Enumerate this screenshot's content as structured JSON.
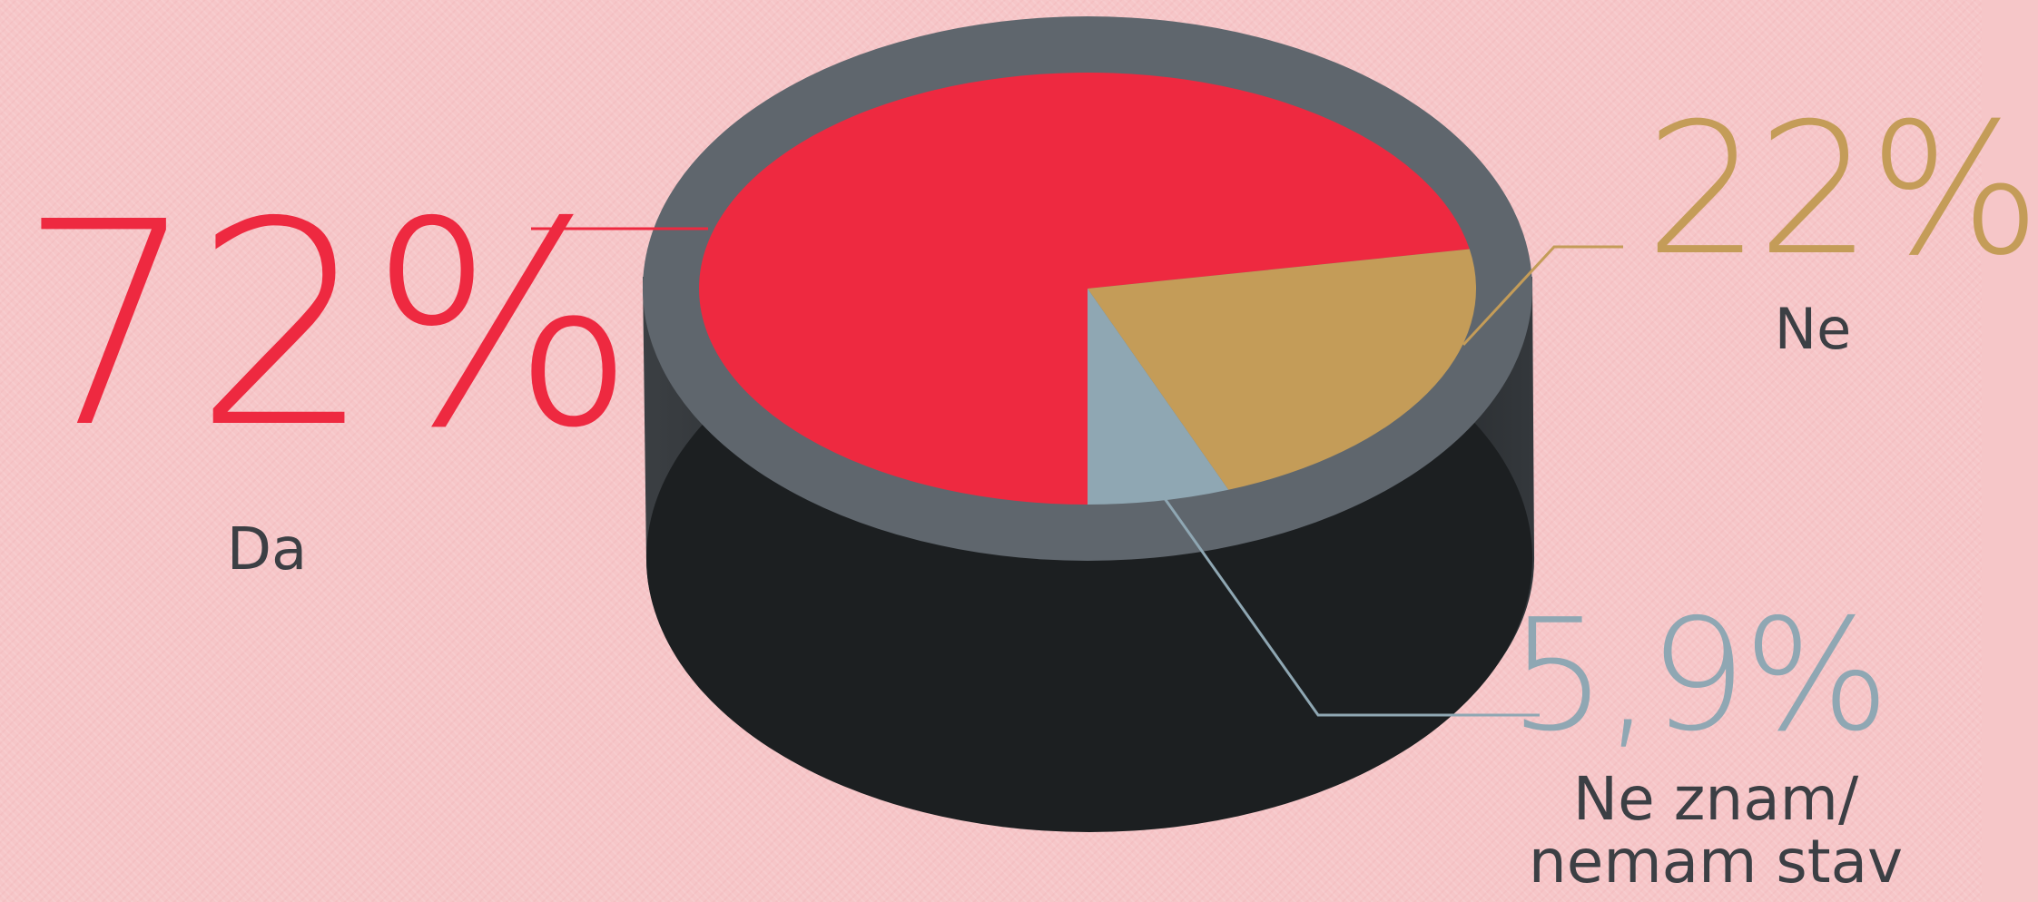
{
  "chart_data": {
    "type": "pie",
    "title": "",
    "slices": [
      {
        "label": "Da",
        "value": 72,
        "display": "72%",
        "color": "#ee2940"
      },
      {
        "label": "Ne",
        "value": 22,
        "display": "22%",
        "color": "#c49c58"
      },
      {
        "label": "Ne znam/\nnemam stav",
        "value": 5.9,
        "display": "5,9%",
        "color": "#8fa7b3"
      }
    ]
  },
  "colors": {
    "background": "#f6c6c8",
    "rim": "#5f666d",
    "body": "#25282b",
    "label_text": "#3c3f44"
  }
}
